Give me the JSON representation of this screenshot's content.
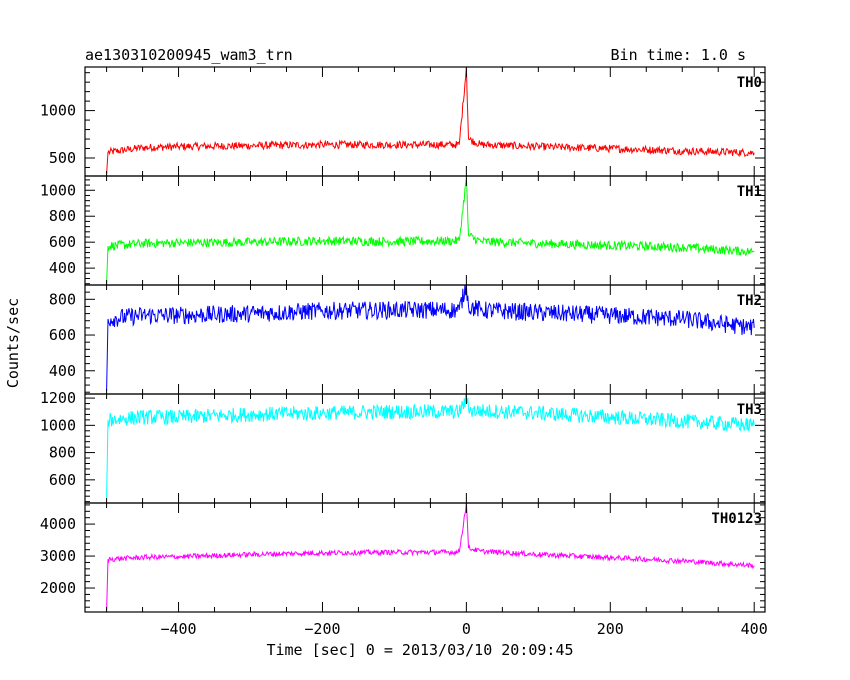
{
  "header": {
    "title": "ae130310200945_wam3_trn",
    "bin_time": "Bin time: 1.0 s"
  },
  "chart_data": {
    "type": "line",
    "title": "ae130310200945_wam3_trn",
    "subtitle": "Bin time: 1.0 s",
    "xlabel": "Time [sec] 0 = 2013/03/10 20:09:45",
    "ylabel": "Counts/sec",
    "xlim": [
      -530,
      415
    ],
    "x_ticks": [
      -400,
      -200,
      0,
      200,
      400
    ],
    "x_tick_labels": [
      "−400",
      "−200",
      "0",
      "200",
      "400"
    ],
    "grid": false,
    "panels": [
      {
        "name": "TH0",
        "color": "#ff0000",
        "ylim": [
          310,
          1460
        ],
        "y_ticks": [
          500,
          1000
        ],
        "y_tick_labels": [
          "500",
          "1000"
        ],
        "points": [
          [
            -500,
            330
          ],
          [
            -498,
            560
          ],
          [
            -450,
            610
          ],
          [
            -400,
            620
          ],
          [
            -300,
            630
          ],
          [
            -200,
            640
          ],
          [
            -100,
            640
          ],
          [
            -10,
            640
          ],
          [
            0,
            1450
          ],
          [
            3,
            700
          ],
          [
            20,
            640
          ],
          [
            100,
            620
          ],
          [
            200,
            600
          ],
          [
            300,
            575
          ],
          [
            400,
            555
          ]
        ],
        "noise": 40
      },
      {
        "name": "TH1",
        "color": "#00ff00",
        "ylim": [
          270,
          1110
        ],
        "y_ticks": [
          400,
          600,
          800,
          1000
        ],
        "y_tick_labels": [
          "400",
          "600",
          "800",
          "1000"
        ],
        "points": [
          [
            -500,
            280
          ],
          [
            -498,
            570
          ],
          [
            -450,
            590
          ],
          [
            -400,
            595
          ],
          [
            -300,
            600
          ],
          [
            -200,
            610
          ],
          [
            -100,
            605
          ],
          [
            -10,
            610
          ],
          [
            0,
            1090
          ],
          [
            3,
            650
          ],
          [
            20,
            605
          ],
          [
            100,
            590
          ],
          [
            200,
            575
          ],
          [
            300,
            560
          ],
          [
            400,
            525
          ]
        ],
        "noise": 35
      },
      {
        "name": "TH2",
        "color": "#0000ff",
        "ylim": [
          270,
          880
        ],
        "y_ticks": [
          400,
          600,
          800
        ],
        "y_tick_labels": [
          "400",
          "600",
          "800"
        ],
        "points": [
          [
            -500,
            290
          ],
          [
            -498,
            690
          ],
          [
            -450,
            710
          ],
          [
            -400,
            710
          ],
          [
            -300,
            720
          ],
          [
            -200,
            735
          ],
          [
            -100,
            740
          ],
          [
            -10,
            740
          ],
          [
            0,
            880
          ],
          [
            3,
            760
          ],
          [
            20,
            740
          ],
          [
            100,
            725
          ],
          [
            200,
            710
          ],
          [
            300,
            690
          ],
          [
            400,
            640
          ]
        ],
        "noise": 50
      },
      {
        "name": "TH3",
        "color": "#00ffff",
        "ylim": [
          430,
          1230
        ],
        "y_ticks": [
          600,
          800,
          1000,
          1200
        ],
        "y_tick_labels": [
          "600",
          "800",
          "1000",
          "1200"
        ],
        "points": [
          [
            -500,
            470
          ],
          [
            -498,
            1040
          ],
          [
            -450,
            1060
          ],
          [
            -400,
            1060
          ],
          [
            -300,
            1080
          ],
          [
            -200,
            1090
          ],
          [
            -100,
            1100
          ],
          [
            -10,
            1100
          ],
          [
            0,
            1190
          ],
          [
            5,
            1110
          ],
          [
            100,
            1090
          ],
          [
            200,
            1060
          ],
          [
            300,
            1030
          ],
          [
            400,
            1000
          ]
        ],
        "noise": 55
      },
      {
        "name": "TH0123",
        "color": "#ff00ff",
        "ylim": [
          1250,
          4660
        ],
        "y_ticks": [
          2000,
          3000,
          4000
        ],
        "y_tick_labels": [
          "2000",
          "3000",
          "4000"
        ],
        "points": [
          [
            -500,
            1300
          ],
          [
            -498,
            2900
          ],
          [
            -450,
            2960
          ],
          [
            -400,
            2980
          ],
          [
            -300,
            3050
          ],
          [
            -200,
            3100
          ],
          [
            -100,
            3120
          ],
          [
            -10,
            3120
          ],
          [
            0,
            4650
          ],
          [
            3,
            3250
          ],
          [
            20,
            3150
          ],
          [
            100,
            3050
          ],
          [
            200,
            2950
          ],
          [
            300,
            2850
          ],
          [
            400,
            2700
          ]
        ],
        "noise": 80
      }
    ]
  }
}
